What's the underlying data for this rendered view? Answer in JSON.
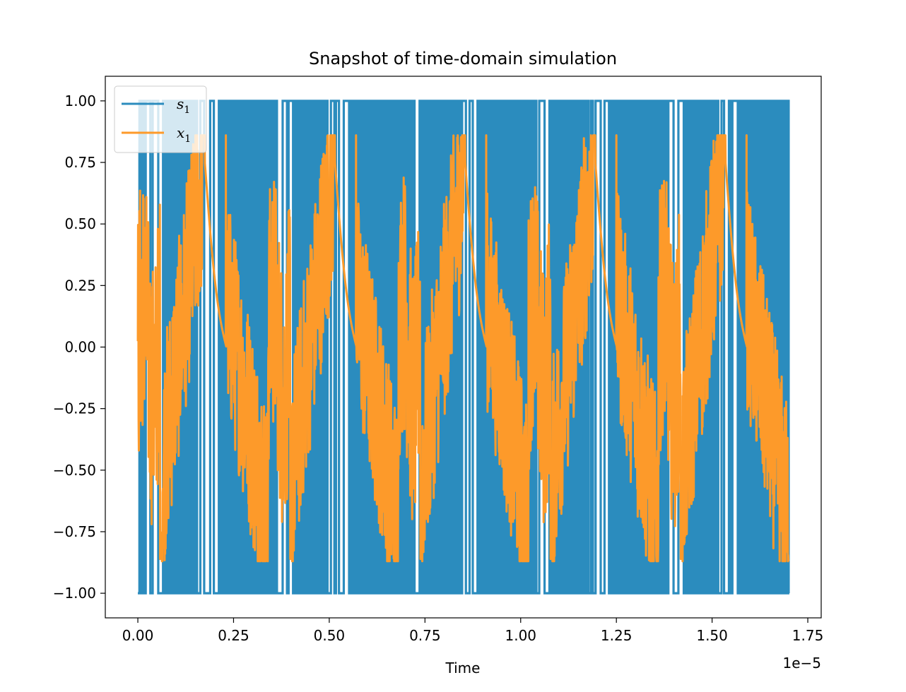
{
  "chart_data": {
    "type": "line",
    "title": "Snapshot of time-domain simulation",
    "xlabel": "Time",
    "ylabel": "",
    "x_offset_label": "1e−5",
    "xlim": [
      -0.085,
      1.785
    ],
    "ylim": [
      -1.1,
      1.1
    ],
    "x_ticks": [
      0.0,
      0.25,
      0.5,
      0.75,
      1.0,
      1.25,
      1.5,
      1.75
    ],
    "x_tick_labels": [
      "0.00",
      "0.25",
      "0.50",
      "0.75",
      "1.00",
      "1.25",
      "1.50",
      "1.75"
    ],
    "y_ticks": [
      -1.0,
      -0.75,
      -0.5,
      -0.25,
      0.0,
      0.25,
      0.5,
      0.75,
      1.0
    ],
    "y_tick_labels": [
      "−1.00",
      "−0.75",
      "−0.50",
      "−0.25",
      "0.00",
      "0.25",
      "0.50",
      "0.75",
      "1.00"
    ],
    "grid": false,
    "legend_position": "top-left",
    "period": 0.34,
    "series": [
      {
        "name": "s1",
        "legend_main": "s",
        "legend_sub": "1",
        "color": "#2b8cbe",
        "kind": "binary-square",
        "levels": [
          -1,
          1
        ],
        "x_range": [
          0.0,
          1.7
        ]
      },
      {
        "name": "x1",
        "legend_main": "x",
        "legend_sub": "1",
        "color": "#fd9a2a",
        "kind": "noisy-sawtooth",
        "x_range": [
          0.0,
          1.7
        ],
        "peaks": [
          {
            "x": 0.23,
            "y": 0.86
          },
          {
            "x": 0.57,
            "y": 0.86
          },
          {
            "x": 0.91,
            "y": 0.86
          },
          {
            "x": 1.25,
            "y": 0.86
          },
          {
            "x": 1.59,
            "y": 0.86
          }
        ],
        "troughs": [
          {
            "x": 0.063,
            "y": -0.87
          },
          {
            "x": 0.403,
            "y": -0.87
          },
          {
            "x": 0.743,
            "y": -0.87
          },
          {
            "x": 1.083,
            "y": -0.87
          },
          {
            "x": 1.423,
            "y": -0.87
          }
        ]
      }
    ]
  }
}
